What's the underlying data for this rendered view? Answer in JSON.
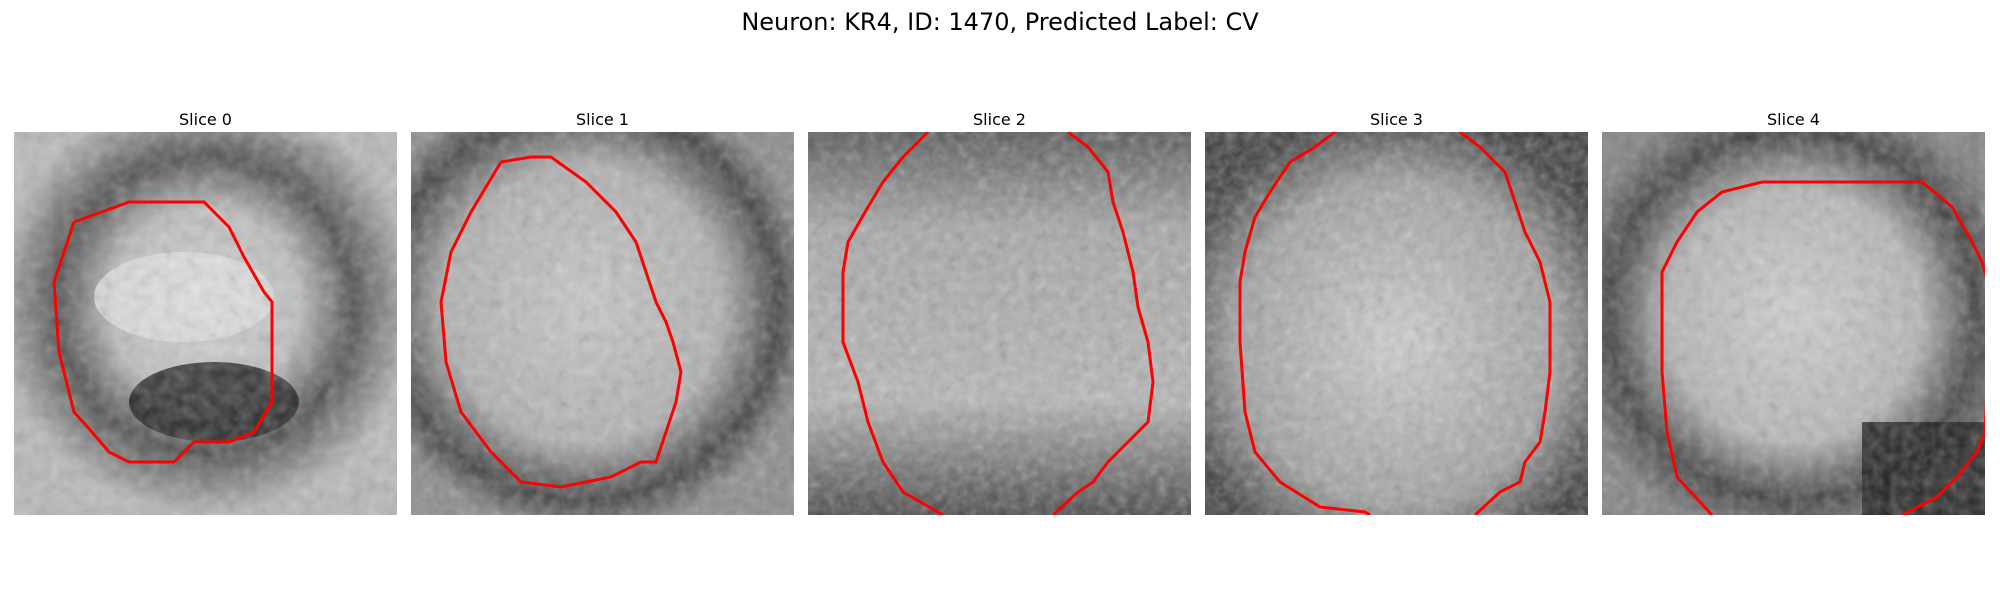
{
  "figure": {
    "title": "Neuron: KR4, ID: 1470, Predicted Label: CV"
  },
  "panels": [
    {
      "title": "Slice 0"
    },
    {
      "title": "Slice 1"
    },
    {
      "title": "Slice 2"
    },
    {
      "title": "Slice 3"
    },
    {
      "title": "Slice 4"
    }
  ],
  "colors": {
    "contour": "#ff0000",
    "background": "#ffffff"
  }
}
